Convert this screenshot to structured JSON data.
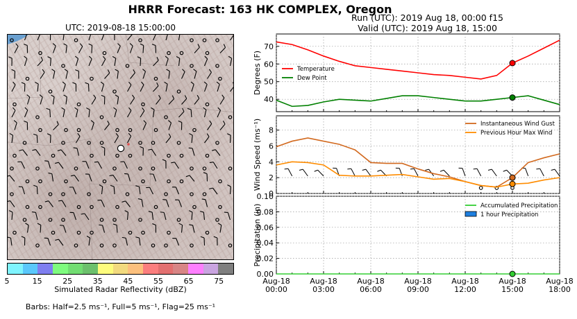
{
  "title": "HRRR Forecast: 163 HK COMPLEX, Oregon",
  "map": {
    "title": "UTC: 2019-08-18 15:00:00",
    "colorbar": {
      "label": "Simulated Radar Reflectivity (dBZ)",
      "ticks": [
        "5",
        "15",
        "25",
        "35",
        "45",
        "55",
        "65",
        "75"
      ],
      "colors": [
        "#7ff4fe",
        "#5ac8fb",
        "#7f7ff0",
        "#7efb7e",
        "#72dd72",
        "#6cc06c",
        "#fdfc7d",
        "#f2da7e",
        "#fcc07d",
        "#fb7e7e",
        "#e37070",
        "#d88585",
        "#fe7ffe",
        "#c9a4e0",
        "#7f7f7f"
      ]
    },
    "barbs_note": "Barbs: Half=2.5 ms⁻¹, Full=5 ms⁻¹, Flag=25 ms⁻¹"
  },
  "run_info": {
    "run": "Run (UTC): 2019 Aug 18, 00:00 f15",
    "valid": "Valid (UTC): 2019 Aug 18, 15:00"
  },
  "chart_data": [
    {
      "type": "line",
      "ylabel": "Degrees (F)",
      "ylim": [
        33,
        77
      ],
      "yticks": [
        "40",
        "50",
        "60",
        "70"
      ],
      "x_hours": [
        0,
        1,
        2,
        3,
        4,
        5,
        6,
        7,
        8,
        9,
        10,
        11,
        12,
        13,
        14,
        15,
        16,
        17,
        18
      ],
      "series": [
        {
          "name": "Temperature",
          "color": "#ff0000",
          "values": [
            72.5,
            71,
            68,
            64.5,
            61.5,
            59,
            58,
            57,
            56,
            55,
            54,
            53.5,
            52.5,
            51.5,
            53.5,
            60.5,
            64.5,
            69,
            73.5
          ]
        },
        {
          "name": "Dew Point",
          "color": "#008000",
          "values": [
            39.5,
            36,
            36.5,
            38.5,
            40,
            39.5,
            39,
            40.5,
            42,
            42,
            41,
            40,
            39,
            39,
            40,
            41,
            42,
            39.5,
            37
          ]
        }
      ],
      "marker_hour": 15,
      "legend": "left"
    },
    {
      "type": "line",
      "ylabel": "Wind Speed (ms⁻¹)",
      "ylim": [
        0,
        9.8
      ],
      "yticks": [
        "0",
        "2",
        "4",
        "6",
        "8"
      ],
      "x_hours": [
        0,
        1,
        2,
        3,
        4,
        5,
        6,
        7,
        8,
        9,
        10,
        11,
        12,
        13,
        14,
        15,
        16,
        17,
        18
      ],
      "series": [
        {
          "name": "Instantaneous Wind Gust",
          "color": "#d2691e",
          "values": [
            5.9,
            6.6,
            7,
            6.6,
            6.2,
            5.5,
            3.9,
            3.8,
            3.8,
            3.1,
            2.5,
            2.1,
            1.5,
            1,
            0.8,
            2,
            3.9,
            4.5,
            5
          ]
        },
        {
          "name": "Previous Hour Max Wind",
          "color": "#ff8c00",
          "values": [
            3.6,
            4,
            3.9,
            3.6,
            2.3,
            2.2,
            2.2,
            2.3,
            2.4,
            2.1,
            1.8,
            1.9,
            1.5,
            1,
            0.8,
            1.2,
            1.3,
            1.7,
            2
          ]
        }
      ],
      "marker_hour": 15,
      "legend": "top-right"
    },
    {
      "type": "line",
      "ylabel": "Precipitation (in)",
      "ylim": [
        0,
        0.1
      ],
      "yticks": [
        "0.00",
        "0.02",
        "0.04",
        "0.06",
        "0.08",
        "0.10"
      ],
      "xticks": [
        "Aug-18\n00:00",
        "Aug-18\n03:00",
        "Aug-18\n06:00",
        "Aug-18\n09:00",
        "Aug-18\n12:00",
        "Aug-18\n15:00",
        "Aug-18\n18:00"
      ],
      "series": [
        {
          "name": "Accumulated Precipitation",
          "color": "#32cd32",
          "values": [
            0,
            0,
            0,
            0,
            0,
            0,
            0,
            0,
            0,
            0,
            0,
            0,
            0,
            0,
            0,
            0,
            0,
            0,
            0
          ]
        },
        {
          "name": "1 hour Precipitation",
          "color": "#1e7fdf",
          "values": [
            0,
            0,
            0,
            0,
            0,
            0,
            0,
            0,
            0,
            0,
            0,
            0,
            0,
            0,
            0,
            0,
            0,
            0,
            0
          ]
        }
      ],
      "marker_hour": 15,
      "legend": "top-right"
    }
  ]
}
